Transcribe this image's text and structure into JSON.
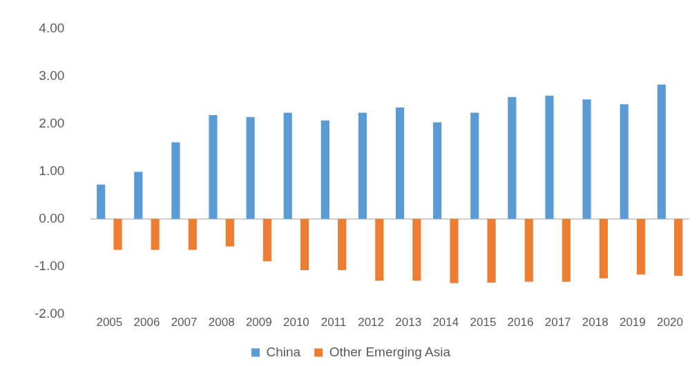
{
  "chart_data": {
    "type": "bar",
    "categories": [
      "2005",
      "2006",
      "2007",
      "2008",
      "2009",
      "2010",
      "2011",
      "2012",
      "2013",
      "2014",
      "2015",
      "2016",
      "2017",
      "2018",
      "2019",
      "2020"
    ],
    "series": [
      {
        "name": "China",
        "color": "#5b9bd5",
        "values": [
          0.72,
          0.99,
          1.61,
          2.18,
          2.14,
          2.23,
          2.07,
          2.23,
          2.34,
          2.03,
          2.23,
          2.56,
          2.59,
          2.51,
          2.41,
          2.82
        ]
      },
      {
        "name": "Other Emerging Asia",
        "color": "#ed7d31",
        "values": [
          -0.65,
          -0.65,
          -0.65,
          -0.58,
          -0.89,
          -1.08,
          -1.08,
          -1.3,
          -1.3,
          -1.35,
          -1.34,
          -1.32,
          -1.32,
          -1.25,
          -1.17,
          -1.2
        ]
      }
    ],
    "ylim": [
      -2,
      4
    ],
    "yticks": [
      {
        "value": -2,
        "label": "-2.00"
      },
      {
        "value": -1,
        "label": "-1.00"
      },
      {
        "value": 0,
        "label": "0.00"
      },
      {
        "value": 1,
        "label": "1.00"
      },
      {
        "value": 2,
        "label": "2.00"
      },
      {
        "value": 3,
        "label": "3.00"
      },
      {
        "value": 4,
        "label": "4.00"
      }
    ],
    "legend": "bottom"
  }
}
